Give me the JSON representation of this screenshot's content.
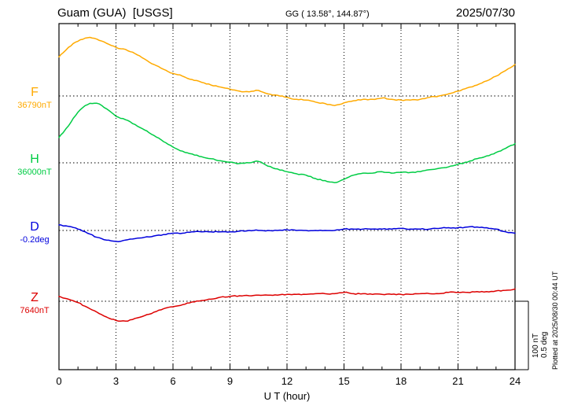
{
  "header": {
    "title": "Guam (GUA)  [USGS]",
    "coordinates": "GG ( 13.58°, 144.87°)",
    "date": "2025/07/30"
  },
  "footer_note": "Plotted at 2025/08/30 00:44 UT",
  "scale_bar": {
    "line1": "100 nT",
    "line2": "0.5 deg"
  },
  "axes": {
    "xlabel": "U T (hour)",
    "x_ticks": [
      "0",
      "3",
      "6",
      "9",
      "12",
      "15",
      "18",
      "21",
      "24"
    ]
  },
  "chart_data": {
    "type": "line",
    "title": "Guam (GUA) [USGS] magnetogram 2025/07/30",
    "xlabel": "U T (hour)",
    "x_range": [
      0,
      24
    ],
    "x_tick_values": [
      0,
      3,
      6,
      9,
      12,
      15,
      18,
      21,
      24
    ],
    "x_start": 0,
    "x_step_hours": 0.5,
    "grid": "dotted vertical at 3h ticks, dotted horizontal baseline per trace",
    "legend_position": "left margin trace labels",
    "scale": {
      "nT_per_division": 100,
      "deg_per_division": 0.5
    },
    "series": [
      {
        "id": "F",
        "label": "F",
        "unit": "nT",
        "baseline_label": "36790nT",
        "baseline_value": 36790,
        "color": "#FFAA00",
        "values": [
          36847,
          36861,
          36870,
          36875,
          36873,
          36867,
          36861,
          36858,
          36852,
          36844,
          36836,
          36829,
          36823,
          36819,
          36814,
          36810,
          36806,
          36803,
          36800,
          36797,
          36796,
          36798,
          36793,
          36791,
          36788,
          36785,
          36784,
          36781,
          36779,
          36776,
          36780,
          36783,
          36785,
          36785,
          36787,
          36785,
          36784,
          36784,
          36785,
          36788,
          36790,
          36793,
          36797,
          36802,
          36806,
          36812,
          36819,
          36827,
          36836
        ]
      },
      {
        "id": "H",
        "label": "H",
        "unit": "nT",
        "baseline_label": "36000nT",
        "baseline_value": 36000,
        "color": "#00CC44",
        "values": [
          36037,
          36054,
          36074,
          36085,
          36087,
          36079,
          36068,
          36063,
          36056,
          36048,
          36040,
          36031,
          36023,
          36017,
          36013,
          36009,
          36006,
          36003,
          36001,
          35999,
          36000,
          36002,
          35995,
          35991,
          35987,
          35984,
          35982,
          35977,
          35974,
          35971,
          35976,
          35982,
          35985,
          35985,
          35987,
          35985,
          35986,
          35986,
          35987,
          35990,
          35992,
          35994,
          35998,
          36001,
          36006,
          36010,
          36015,
          36021,
          36028
        ]
      },
      {
        "id": "D",
        "label": "D",
        "unit": "deg",
        "baseline_label": "-0.2deg",
        "baseline_value": -0.2,
        "color": "#0000DD",
        "values": [
          -0.16,
          -0.17,
          -0.19,
          -0.22,
          -0.25,
          -0.27,
          -0.28,
          -0.27,
          -0.26,
          -0.25,
          -0.24,
          -0.23,
          -0.22,
          -0.22,
          -0.21,
          -0.21,
          -0.21,
          -0.21,
          -0.21,
          -0.205,
          -0.2,
          -0.2,
          -0.2,
          -0.2,
          -0.195,
          -0.2,
          -0.2,
          -0.2,
          -0.2,
          -0.2,
          -0.19,
          -0.19,
          -0.19,
          -0.19,
          -0.19,
          -0.19,
          -0.185,
          -0.19,
          -0.19,
          -0.19,
          -0.185,
          -0.18,
          -0.18,
          -0.175,
          -0.175,
          -0.18,
          -0.19,
          -0.21,
          -0.22
        ]
      },
      {
        "id": "Z",
        "label": "Z",
        "unit": "nT",
        "baseline_label": "7640nT",
        "baseline_value": 7640,
        "color": "#DD0000",
        "values": [
          7647,
          7643,
          7638,
          7631,
          7624,
          7617,
          7612,
          7611,
          7615,
          7619,
          7624,
          7629,
          7632,
          7635,
          7639,
          7641,
          7643,
          7646,
          7647,
          7648,
          7648,
          7649,
          7649,
          7649,
          7650,
          7650,
          7650,
          7651,
          7651,
          7651,
          7653,
          7651,
          7651,
          7650,
          7650,
          7650,
          7650,
          7650,
          7651,
          7651,
          7651,
          7653,
          7653,
          7653,
          7654,
          7654,
          7655,
          7656,
          7658
        ]
      }
    ]
  }
}
